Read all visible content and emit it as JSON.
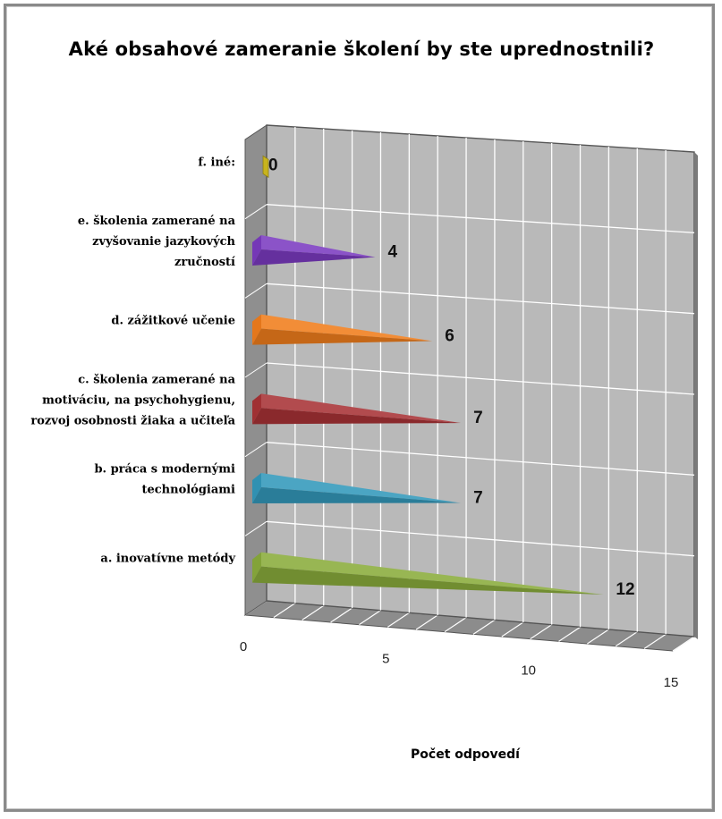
{
  "chart_data": {
    "type": "bar",
    "orientation": "horizontal",
    "style": "3d-cone",
    "title": "Aké obsahové zameranie školení by ste uprednostnili?",
    "xlabel": "Počet odpovedí",
    "ylabel": "",
    "xlim": [
      0,
      15
    ],
    "x_ticks": [
      "0",
      "5",
      "10",
      "15"
    ],
    "grid": true,
    "legend": "none",
    "categories": [
      [
        "a. inovatívne metódy"
      ],
      [
        "b. práca s modernými",
        "technológiami"
      ],
      [
        "c. školenia zamerané na",
        "motiváciu, na psychohygienu,",
        "rozvoj osobnosti žiaka a učiteľa"
      ],
      [
        "d. zážitkové učenie"
      ],
      [
        "e. školenia zamerané na",
        "zvyšovanie jazykových",
        "zručností"
      ],
      [
        "f. iné:"
      ]
    ],
    "values": [
      12,
      7,
      7,
      6,
      4,
      0
    ],
    "data_labels": [
      "12",
      "7",
      "7",
      "6",
      "4",
      "0"
    ],
    "colors": [
      "#8aac3c",
      "#3399bb",
      "#a83236",
      "#f07d1c",
      "#7b3bc1",
      "#c8b41e"
    ]
  }
}
